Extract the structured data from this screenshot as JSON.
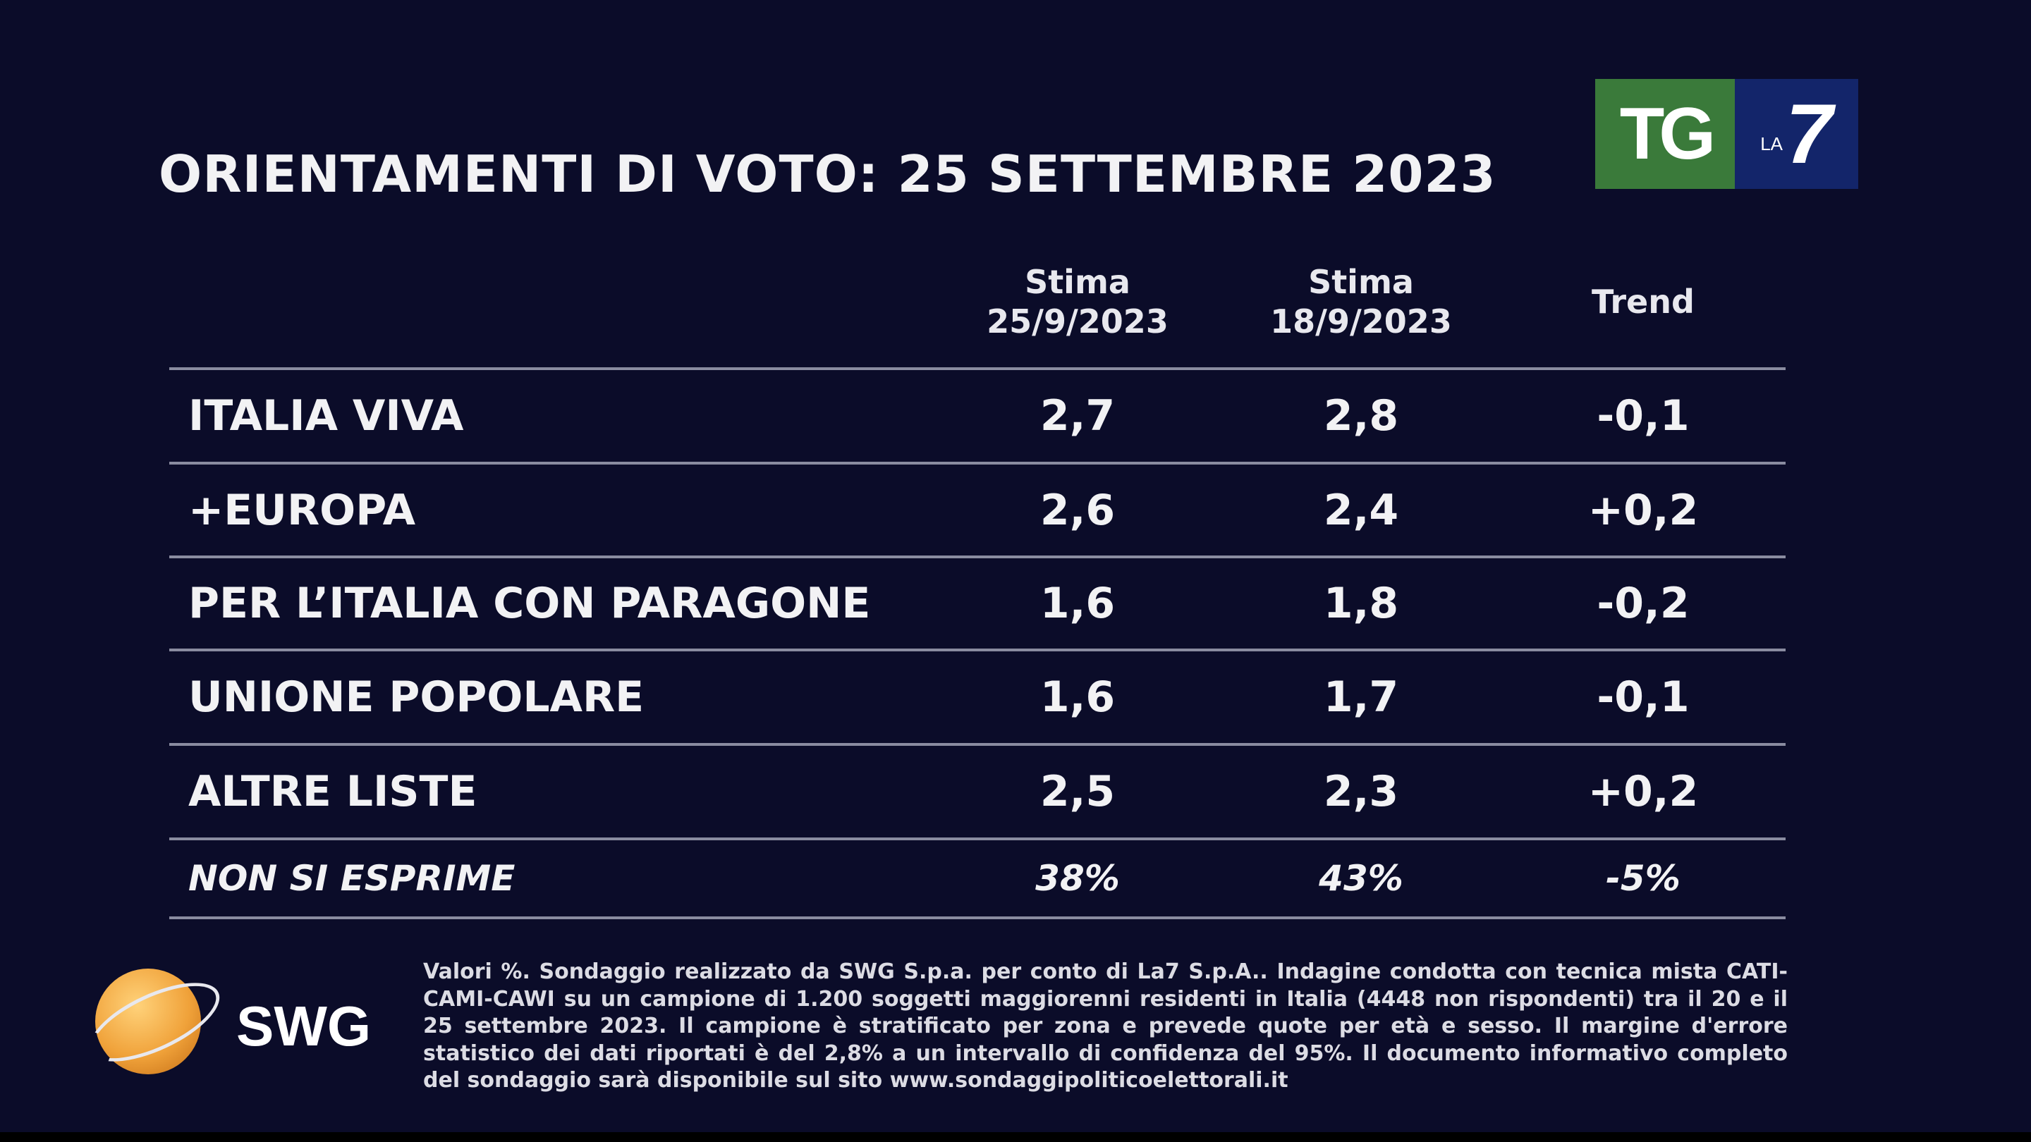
{
  "title": "ORIENTAMENTI DI VOTO: 25 SETTEMBRE 2023",
  "logo": {
    "tg": "TG",
    "la": "LA",
    "seven": "7",
    "colors": {
      "green": "#3a7a3a",
      "blue": "#13256a"
    }
  },
  "chart_data": {
    "type": "table",
    "columns": [
      {
        "line1": "Stima",
        "line2": "25/9/2023"
      },
      {
        "line1": "Stima",
        "line2": "18/9/2023"
      },
      {
        "line1": "Trend",
        "line2": ""
      }
    ],
    "rows": [
      {
        "party": "ITALIA VIVA",
        "v1": "2,7",
        "v2": "2,8",
        "trend": "-0,1"
      },
      {
        "party": "+EUROPA",
        "v1": "2,6",
        "v2": "2,4",
        "trend": "+0,2"
      },
      {
        "party": "PER L’ITALIA CON PARAGONE",
        "v1": "1,6",
        "v2": "1,8",
        "trend": "-0,2"
      },
      {
        "party": "UNIONE POPOLARE",
        "v1": "1,6",
        "v2": "1,7",
        "trend": "-0,1"
      },
      {
        "party": "ALTRE LISTE",
        "v1": "2,5",
        "v2": "2,3",
        "trend": "+0,2"
      },
      {
        "party": "NON SI ESPRIME",
        "v1": "38%",
        "v2": "43%",
        "trend": "-5%"
      }
    ]
  },
  "swg": {
    "label": "SWG"
  },
  "footnote": "Valori %. Sondaggio realizzato da SWG S.p.a. per conto di La7 S.p.A.. Indagine condotta con tecnica mista CATI-CAMI-CAWI su un campione di 1.200 soggetti maggiorenni residenti in Italia (4448 non rispondenti) tra il 20 e il 25 settembre 2023. Il campione è stratificato per zona e prevede quote per età e sesso. Il margine d'errore statistico dei dati riportati è del 2,8% a un intervallo di confidenza del 95%. Il documento informativo completo del sondaggio sarà disponibile sul sito www.sondaggipoliticoelettorali.it"
}
